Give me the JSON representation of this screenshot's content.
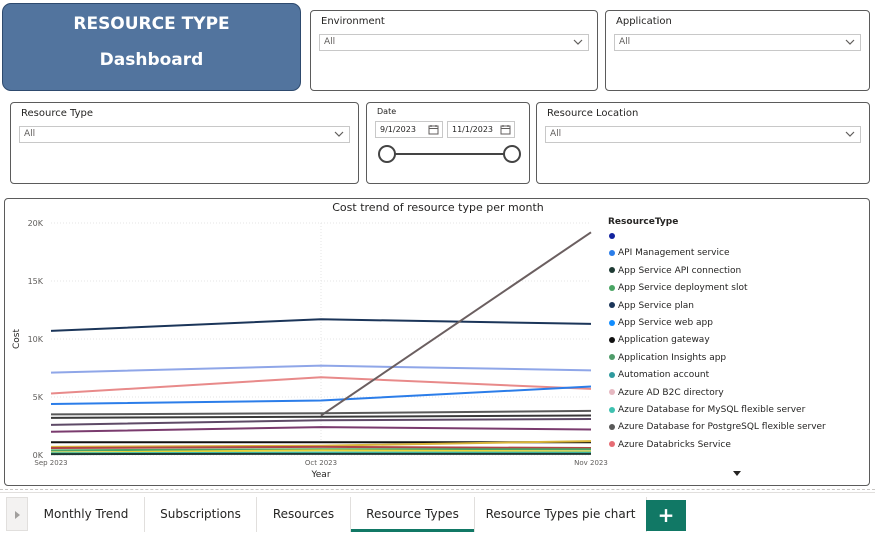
{
  "title_card": {
    "line1": "RESOURCE TYPE",
    "line2": "Dashboard"
  },
  "slicers": {
    "environment": {
      "label": "Environment",
      "value": "All"
    },
    "application": {
      "label": "Application",
      "value": "All"
    },
    "resource_type": {
      "label": "Resource Type",
      "value": "All"
    },
    "resource_location": {
      "label": "Resource Location",
      "value": "All"
    },
    "date": {
      "label": "Date",
      "start": "9/1/2023",
      "end": "11/1/2023"
    }
  },
  "chart_data": {
    "type": "line",
    "title": "Cost trend of resource type per month",
    "xlabel": "Year",
    "ylabel": "Cost",
    "categories": [
      "Sep 2023",
      "Oct 2023",
      "Nov 2023"
    ],
    "ylim": [
      0,
      20000
    ],
    "yticks": [
      "0K",
      "5K",
      "10K",
      "15K",
      "20K"
    ],
    "yticks_values": [
      0,
      5000,
      10000,
      15000,
      20000
    ],
    "grid": true,
    "legend_title": "ResourceType",
    "legend_position": "right",
    "legend": [
      {
        "name": "",
        "color": "#12239e"
      },
      {
        "name": "API Management service",
        "color": "#2b7de9"
      },
      {
        "name": "App Service API connection",
        "color": "#1e3a34"
      },
      {
        "name": "App Service deployment slot",
        "color": "#4aa564"
      },
      {
        "name": "App Service plan",
        "color": "#1b3559"
      },
      {
        "name": "App Service web app",
        "color": "#118dff"
      },
      {
        "name": "Application gateway",
        "color": "#111111"
      },
      {
        "name": "Application Insights app",
        "color": "#4f9c6a"
      },
      {
        "name": "Automation account",
        "color": "#2f9a9e"
      },
      {
        "name": "Azure AD B2C directory",
        "color": "#e6b8c1"
      },
      {
        "name": "Azure Database for MySQL flexible server",
        "color": "#3fc1b0"
      },
      {
        "name": "Azure Database for PostgreSQL flexible server",
        "color": "#595959"
      },
      {
        "name": "Azure Databricks Service",
        "color": "#e66c74"
      }
    ],
    "series": [
      {
        "color": "#1b3559",
        "values": [
          10700,
          11700,
          11300
        ]
      },
      {
        "color": "#8fa6e8",
        "values": [
          7100,
          7700,
          7300
        ]
      },
      {
        "color": "#e88a8a",
        "values": [
          5300,
          6700,
          5700
        ]
      },
      {
        "color": "#2b7de9",
        "values": [
          4400,
          4700,
          5900
        ]
      },
      {
        "color": "#6b5f60",
        "values": [
          null,
          3400,
          19200
        ]
      },
      {
        "color": "#595959",
        "values": [
          3500,
          3600,
          3800
        ]
      },
      {
        "color": "#3a3a3a",
        "values": [
          3200,
          3300,
          3400
        ]
      },
      {
        "color": "#5e4a67",
        "values": [
          2600,
          3000,
          3100
        ]
      },
      {
        "color": "#7a3b6e",
        "values": [
          2000,
          2400,
          2200
        ]
      },
      {
        "color": "#111111",
        "values": [
          1100,
          1100,
          1100
        ]
      },
      {
        "color": "#d9b43a",
        "values": [
          700,
          800,
          1200
        ]
      },
      {
        "color": "#b04545",
        "values": [
          600,
          700,
          600
        ]
      },
      {
        "color": "#4aa564",
        "values": [
          400,
          500,
          500
        ]
      },
      {
        "color": "#e6d33b",
        "values": [
          200,
          400,
          300
        ]
      },
      {
        "color": "#3fc1b0",
        "values": [
          150,
          200,
          200
        ]
      },
      {
        "color": "#1e3a34",
        "values": [
          80,
          100,
          100
        ]
      }
    ]
  },
  "tabs": [
    {
      "label": "Monthly Trend",
      "active": false
    },
    {
      "label": "Subscriptions",
      "active": false
    },
    {
      "label": "Resources",
      "active": false
    },
    {
      "label": "Resource Types",
      "active": true
    },
    {
      "label": "Resource Types pie chart",
      "active": false
    }
  ],
  "add_tab_label": "+"
}
